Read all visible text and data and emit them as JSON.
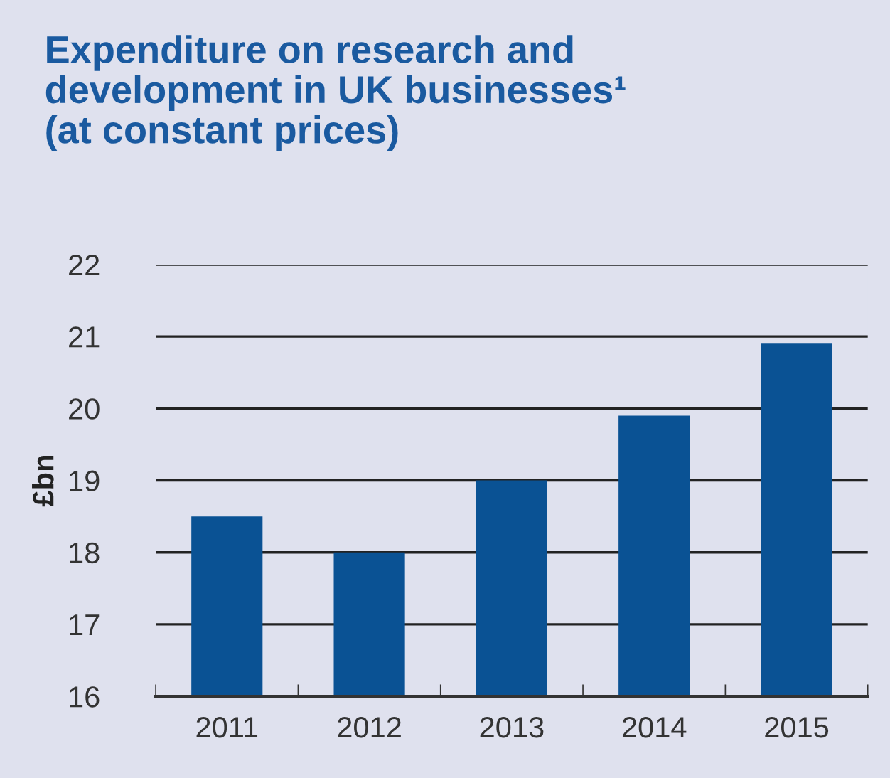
{
  "chart_data": {
    "type": "bar",
    "title": "Expenditure on research and\ndevelopment in UK businesses¹\n(at constant prices)",
    "ylabel": "£bn",
    "categories": [
      "2011",
      "2012",
      "2013",
      "2014",
      "2015"
    ],
    "values": [
      18.5,
      18.0,
      19.0,
      19.9,
      20.9
    ],
    "color": "#0a5294",
    "ylim": [
      16,
      22
    ],
    "yticks": [
      16,
      17,
      18,
      19,
      20,
      21,
      22
    ],
    "grid": "y"
  }
}
